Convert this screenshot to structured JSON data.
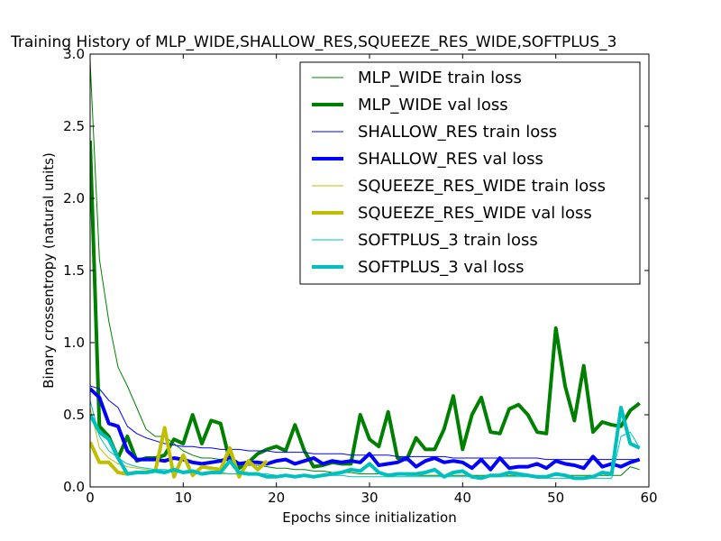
{
  "chart_data": {
    "type": "line",
    "title": "Training History of MLP_WIDE,SHALLOW_RES,SQUEEZE_RES_WIDE,SOFTPLUS_3",
    "xlabel": "Epochs since initialization",
    "ylabel": "Binary crossentropy (natural units)",
    "xlim": [
      0,
      60
    ],
    "ylim": [
      0,
      3.0
    ],
    "xticks": [
      "0",
      "10",
      "20",
      "30",
      "40",
      "50",
      "60"
    ],
    "yticks": [
      "0.0",
      "0.5",
      "1.0",
      "1.5",
      "2.0",
      "2.5",
      "3.0"
    ],
    "grid": false,
    "legend_position": "top-right",
    "series": [
      {
        "name": "MLP_WIDE train loss",
        "color": "#008000",
        "width": "thin",
        "x": [
          0,
          1,
          2,
          3,
          4,
          5,
          6,
          7,
          8,
          9,
          10,
          11,
          12,
          13,
          14,
          15,
          16,
          17,
          18,
          19,
          20,
          21,
          22,
          23,
          24,
          25,
          26,
          27,
          28,
          29,
          30,
          31,
          32,
          33,
          34,
          35,
          36,
          37,
          38,
          39,
          40,
          41,
          42,
          43,
          44,
          45,
          46,
          47,
          48,
          49,
          50,
          51,
          52,
          53,
          54,
          55,
          56,
          57,
          58,
          59
        ],
        "y": [
          2.95,
          1.58,
          1.15,
          0.83,
          0.7,
          0.55,
          0.4,
          0.35,
          0.35,
          0.3,
          0.25,
          0.22,
          0.2,
          0.2,
          0.19,
          0.18,
          0.16,
          0.15,
          0.15,
          0.14,
          0.13,
          0.13,
          0.12,
          0.12,
          0.11,
          0.11,
          0.1,
          0.1,
          0.1,
          0.09,
          0.09,
          0.09,
          0.09,
          0.09,
          0.08,
          0.08,
          0.08,
          0.08,
          0.08,
          0.08,
          0.08,
          0.08,
          0.08,
          0.08,
          0.08,
          0.08,
          0.08,
          0.08,
          0.07,
          0.07,
          0.08,
          0.08,
          0.08,
          0.08,
          0.08,
          0.08,
          0.08,
          0.08,
          0.14,
          0.12
        ]
      },
      {
        "name": "MLP_WIDE val loss",
        "color": "#008000",
        "width": "thick",
        "x": [
          0,
          1,
          2,
          3,
          4,
          5,
          6,
          7,
          8,
          9,
          10,
          11,
          12,
          13,
          14,
          15,
          16,
          17,
          18,
          19,
          20,
          21,
          22,
          23,
          24,
          25,
          26,
          27,
          28,
          29,
          30,
          31,
          32,
          33,
          34,
          35,
          36,
          37,
          38,
          39,
          40,
          41,
          42,
          43,
          44,
          45,
          46,
          47,
          48,
          49,
          50,
          51,
          52,
          53,
          54,
          55,
          56,
          57,
          58,
          59
        ],
        "y": [
          2.4,
          0.42,
          0.35,
          0.2,
          0.35,
          0.18,
          0.2,
          0.2,
          0.22,
          0.33,
          0.3,
          0.5,
          0.3,
          0.46,
          0.44,
          0.18,
          0.13,
          0.17,
          0.23,
          0.26,
          0.28,
          0.25,
          0.43,
          0.25,
          0.14,
          0.15,
          0.17,
          0.16,
          0.16,
          0.5,
          0.33,
          0.28,
          0.52,
          0.2,
          0.19,
          0.34,
          0.26,
          0.26,
          0.4,
          0.63,
          0.26,
          0.5,
          0.62,
          0.38,
          0.37,
          0.54,
          0.57,
          0.5,
          0.38,
          0.37,
          1.1,
          0.7,
          0.46,
          0.84,
          0.38,
          0.45,
          0.43,
          0.42,
          0.53,
          0.58
        ]
      },
      {
        "name": "SHALLOW_RES train loss",
        "color": "#0000ff",
        "width": "thin",
        "x": [
          0,
          1,
          2,
          3,
          4,
          5,
          6,
          7,
          8,
          9,
          10,
          11,
          12,
          13,
          14,
          15,
          16,
          17,
          18,
          19,
          20,
          21,
          22,
          23,
          24,
          25,
          26,
          27,
          28,
          29,
          30,
          31,
          32,
          33,
          34,
          35,
          36,
          37,
          38,
          39,
          40,
          41,
          42,
          43,
          44,
          45,
          46,
          47,
          48,
          49,
          50,
          51,
          52,
          53,
          54,
          55,
          56,
          57,
          58,
          59
        ],
        "y": [
          0.7,
          0.68,
          0.6,
          0.55,
          0.42,
          0.37,
          0.34,
          0.32,
          0.3,
          0.29,
          0.28,
          0.28,
          0.27,
          0.27,
          0.26,
          0.26,
          0.26,
          0.25,
          0.25,
          0.25,
          0.24,
          0.24,
          0.24,
          0.24,
          0.23,
          0.23,
          0.23,
          0.23,
          0.22,
          0.22,
          0.22,
          0.22,
          0.22,
          0.21,
          0.21,
          0.21,
          0.21,
          0.21,
          0.21,
          0.2,
          0.2,
          0.2,
          0.2,
          0.2,
          0.2,
          0.2,
          0.2,
          0.2,
          0.2,
          0.19,
          0.19,
          0.19,
          0.19,
          0.19,
          0.19,
          0.19,
          0.19,
          0.19,
          0.19,
          0.19
        ]
      },
      {
        "name": "SHALLOW_RES val loss",
        "color": "#0000ff",
        "width": "thick",
        "x": [
          0,
          1,
          2,
          3,
          4,
          5,
          6,
          7,
          8,
          9,
          10,
          11,
          12,
          13,
          14,
          15,
          16,
          17,
          18,
          19,
          20,
          21,
          22,
          23,
          24,
          25,
          26,
          27,
          28,
          29,
          30,
          31,
          32,
          33,
          34,
          35,
          36,
          37,
          38,
          39,
          40,
          41,
          42,
          43,
          44,
          45,
          46,
          47,
          48,
          49,
          50,
          51,
          52,
          53,
          54,
          55,
          56,
          57,
          58,
          59
        ],
        "y": [
          0.68,
          0.62,
          0.44,
          0.42,
          0.25,
          0.19,
          0.19,
          0.19,
          0.18,
          0.2,
          0.19,
          0.17,
          0.16,
          0.17,
          0.18,
          0.2,
          0.16,
          0.17,
          0.17,
          0.16,
          0.18,
          0.19,
          0.16,
          0.18,
          0.2,
          0.16,
          0.18,
          0.17,
          0.18,
          0.17,
          0.23,
          0.15,
          0.16,
          0.17,
          0.2,
          0.14,
          0.18,
          0.2,
          0.17,
          0.18,
          0.17,
          0.13,
          0.19,
          0.12,
          0.2,
          0.13,
          0.14,
          0.14,
          0.16,
          0.13,
          0.18,
          0.16,
          0.15,
          0.13,
          0.21,
          0.14,
          0.16,
          0.14,
          0.17,
          0.19
        ]
      },
      {
        "name": "SQUEEZE_RES_WIDE train loss",
        "color": "#bfbf00",
        "width": "thin",
        "x": [
          0,
          1,
          2,
          3,
          4,
          5,
          6,
          7,
          8,
          9,
          10,
          11,
          12,
          13,
          14,
          15,
          16,
          17,
          18,
          19
        ],
        "y": [
          0.55,
          0.27,
          0.2,
          0.16,
          0.14,
          0.13,
          0.12,
          0.11,
          0.11,
          0.1,
          0.1,
          0.1,
          0.09,
          0.09,
          0.09,
          0.09,
          0.09,
          0.09,
          0.09,
          0.08
        ]
      },
      {
        "name": "SQUEEZE_RES_WIDE val loss",
        "color": "#bfbf00",
        "width": "thick",
        "x": [
          0,
          1,
          2,
          3,
          4,
          5,
          6,
          7,
          8,
          9,
          10,
          11,
          12,
          13,
          14,
          15,
          16,
          17,
          18,
          19
        ],
        "y": [
          0.31,
          0.17,
          0.17,
          0.1,
          0.09,
          0.1,
          0.1,
          0.11,
          0.41,
          0.07,
          0.22,
          0.08,
          0.14,
          0.13,
          0.12,
          0.27,
          0.07,
          0.18,
          0.12,
          0.18
        ]
      },
      {
        "name": "SOFTPLUS_3 train loss",
        "color": "#00bfbf",
        "width": "thin",
        "x": [
          0,
          1,
          2,
          3,
          4,
          5,
          6,
          7,
          8,
          9,
          10,
          11,
          12,
          13,
          14,
          15,
          16,
          17,
          18,
          19,
          20,
          21,
          22,
          23,
          24,
          25,
          26,
          27,
          28,
          29,
          30,
          31,
          32,
          33,
          34,
          35,
          36,
          37,
          38,
          39,
          40,
          41,
          42,
          43,
          44,
          45,
          46,
          47,
          48,
          49,
          50,
          51,
          52,
          53,
          54,
          55,
          56,
          57,
          58,
          59
        ],
        "y": [
          0.6,
          0.35,
          0.25,
          0.2,
          0.16,
          0.14,
          0.13,
          0.12,
          0.12,
          0.11,
          0.11,
          0.1,
          0.1,
          0.1,
          0.1,
          0.09,
          0.09,
          0.09,
          0.09,
          0.09,
          0.08,
          0.08,
          0.08,
          0.08,
          0.08,
          0.08,
          0.08,
          0.08,
          0.07,
          0.07,
          0.07,
          0.07,
          0.07,
          0.07,
          0.07,
          0.07,
          0.07,
          0.07,
          0.07,
          0.07,
          0.07,
          0.07,
          0.07,
          0.07,
          0.07,
          0.07,
          0.07,
          0.07,
          0.06,
          0.06,
          0.06,
          0.06,
          0.06,
          0.06,
          0.06,
          0.06,
          0.06,
          0.35,
          0.38,
          0.27
        ]
      },
      {
        "name": "SOFTPLUS_3 val loss",
        "color": "#00bfbf",
        "width": "thick",
        "x": [
          0,
          1,
          2,
          3,
          4,
          5,
          6,
          7,
          8,
          9,
          10,
          11,
          12,
          13,
          14,
          15,
          16,
          17,
          18,
          19,
          20,
          21,
          22,
          23,
          24,
          25,
          26,
          27,
          28,
          29,
          30,
          31,
          32,
          33,
          34,
          35,
          36,
          37,
          38,
          39,
          40,
          41,
          42,
          43,
          44,
          45,
          46,
          47,
          48,
          49,
          50,
          51,
          52,
          53,
          54,
          55,
          56,
          57,
          58,
          59
        ],
        "y": [
          0.5,
          0.38,
          0.33,
          0.2,
          0.09,
          0.1,
          0.1,
          0.11,
          0.1,
          0.12,
          0.1,
          0.11,
          0.09,
          0.1,
          0.1,
          0.18,
          0.1,
          0.09,
          0.09,
          0.07,
          0.07,
          0.08,
          0.07,
          0.08,
          0.07,
          0.08,
          0.09,
          0.1,
          0.12,
          0.11,
          0.16,
          0.1,
          0.08,
          0.09,
          0.09,
          0.09,
          0.1,
          0.12,
          0.07,
          0.1,
          0.11,
          0.07,
          0.06,
          0.08,
          0.08,
          0.1,
          0.09,
          0.08,
          0.07,
          0.07,
          0.09,
          0.08,
          0.06,
          0.06,
          0.07,
          0.1,
          0.09,
          0.55,
          0.3,
          0.27
        ]
      }
    ]
  }
}
